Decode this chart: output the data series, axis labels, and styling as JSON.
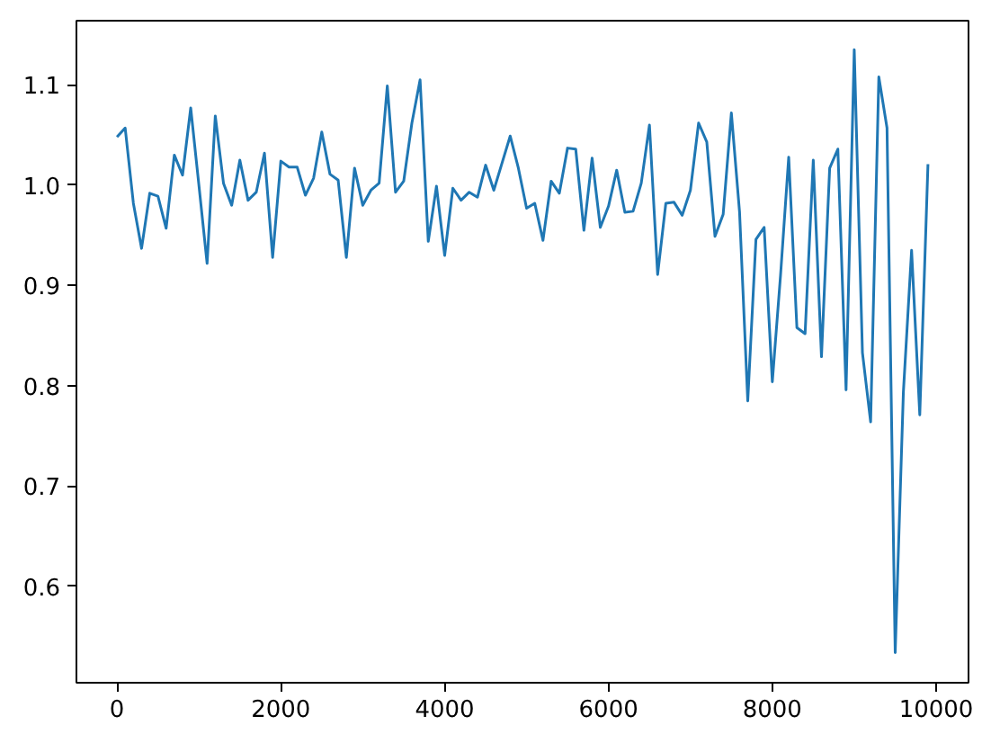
{
  "chart_data": {
    "type": "line",
    "x": [
      0,
      100,
      200,
      300,
      400,
      500,
      600,
      700,
      800,
      900,
      1000,
      1100,
      1200,
      1300,
      1400,
      1500,
      1600,
      1700,
      1800,
      1900,
      2000,
      2100,
      2200,
      2300,
      2400,
      2500,
      2600,
      2700,
      2800,
      2900,
      3000,
      3100,
      3200,
      3300,
      3400,
      3500,
      3600,
      3700,
      3800,
      3900,
      4000,
      4100,
      4200,
      4300,
      4400,
      4500,
      4600,
      4700,
      4800,
      4900,
      5000,
      5100,
      5200,
      5300,
      5400,
      5500,
      5600,
      5700,
      5800,
      5900,
      6000,
      6100,
      6200,
      6300,
      6400,
      6500,
      6600,
      6700,
      6800,
      6900,
      7000,
      7100,
      7200,
      7300,
      7400,
      7500,
      7600,
      7700,
      7800,
      7900,
      8000,
      8100,
      8200,
      8300,
      8400,
      8500,
      8600,
      8700,
      8800,
      8900,
      9000,
      9100,
      9200,
      9300,
      9400,
      9500,
      9600,
      9700,
      9800,
      9900
    ],
    "series": [
      {
        "color": "#1f77b4",
        "values": [
          1.048,
          1.057,
          0.982,
          0.937,
          0.992,
          0.989,
          0.957,
          1.03,
          1.01,
          1.077,
          1.0,
          0.922,
          1.069,
          1.002,
          0.98,
          1.025,
          0.985,
          0.993,
          1.032,
          0.928,
          1.024,
          1.018,
          1.018,
          0.99,
          1.007,
          1.053,
          1.011,
          1.005,
          0.928,
          1.017,
          0.98,
          0.995,
          1.002,
          1.099,
          0.993,
          1.004,
          1.062,
          1.105,
          0.944,
          0.999,
          0.93,
          0.997,
          0.985,
          0.993,
          0.988,
          1.02,
          0.995,
          1.022,
          1.049,
          1.017,
          0.977,
          0.982,
          0.945,
          1.004,
          0.992,
          1.037,
          1.036,
          0.955,
          1.027,
          0.958,
          0.979,
          1.015,
          0.973,
          0.974,
          1.002,
          1.06,
          0.911,
          0.982,
          0.983,
          0.97,
          0.995,
          1.062,
          1.043,
          0.949,
          0.971,
          1.072,
          0.973,
          0.785,
          0.946,
          0.958,
          0.804,
          0.91,
          1.028,
          0.858,
          0.852,
          1.025,
          0.829,
          1.017,
          1.036,
          0.796,
          1.135,
          0.833,
          0.764,
          1.108,
          1.057,
          0.534,
          0.794,
          0.935,
          0.771,
          1.021
        ]
      }
    ],
    "xlim": [
      -495,
      10395
    ],
    "ylim": [
      0.504,
      1.164
    ],
    "xticks": [
      0,
      2000,
      4000,
      6000,
      8000,
      10000
    ],
    "yticks": [
      {
        "value": 0.6,
        "label": "0.6"
      },
      {
        "value": 0.7,
        "label": "0.7"
      },
      {
        "value": 0.8,
        "label": "0.8"
      },
      {
        "value": 0.9,
        "label": "0.9"
      },
      {
        "value": 1.0,
        "label": "1.0"
      },
      {
        "value": 1.1,
        "label": "1.1"
      }
    ],
    "grid": false
  }
}
